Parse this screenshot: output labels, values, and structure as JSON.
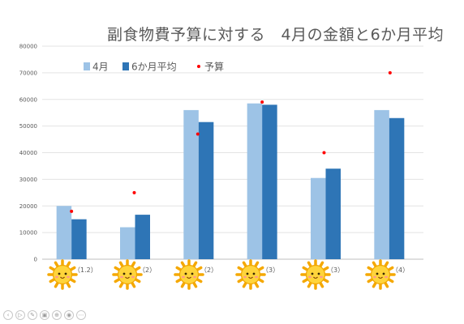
{
  "chart_data": {
    "type": "bar",
    "title": "副食物費予算に対する　4月の金額と6か月平均",
    "categories": [
      "（1.2）",
      "（2）",
      "（2）",
      "（3）",
      "（3）",
      "（4）"
    ],
    "series": [
      {
        "name": "4月",
        "kind": "bar",
        "color": "#9dc3e6",
        "values": [
          20000,
          12000,
          56000,
          58500,
          30500,
          56000
        ]
      },
      {
        "name": "6か月平均",
        "kind": "bar",
        "color": "#2e75b6",
        "values": [
          15000,
          16700,
          51500,
          58000,
          34000,
          53000
        ]
      },
      {
        "name": "予算",
        "kind": "scatter",
        "color": "#ff0000",
        "values": [
          18000,
          25000,
          47000,
          59000,
          40000,
          70000
        ]
      }
    ],
    "ylim": [
      0,
      80000
    ],
    "yticks": [
      "0",
      "10000",
      "20000",
      "30000",
      "40000",
      "50000",
      "60000",
      "70000",
      "80000"
    ],
    "grid": true,
    "legend": "top-left",
    "category_icon": "sun-face-icon"
  },
  "controls": {
    "prev": "‹",
    "play": "▷",
    "pen": "✎",
    "pages": "▣",
    "zoom": "⊕",
    "view": "◉",
    "more": "⋯"
  }
}
